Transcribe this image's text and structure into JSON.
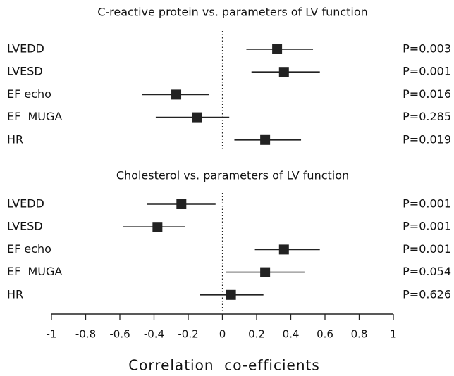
{
  "chart_data": [
    {
      "type": "forest",
      "title": "C-reactive protein vs. parameters of LV function",
      "categories": [
        "LVEDD",
        "LVESD",
        "EF echo",
        "EF  MUGA",
        "HR"
      ],
      "values": [
        0.32,
        0.36,
        -0.27,
        -0.15,
        0.25
      ],
      "ci_low": [
        0.14,
        0.17,
        -0.47,
        -0.39,
        0.07
      ],
      "ci_high": [
        0.53,
        0.57,
        -0.08,
        0.04,
        0.46
      ],
      "p_values": [
        "P=0.003",
        "P=0.001",
        "P=0.016",
        "P=0.285",
        "P=0.019"
      ],
      "xlim": [
        -1,
        1
      ],
      "color": "#222222"
    },
    {
      "type": "forest",
      "title": "Cholesterol vs. parameters of LV function",
      "categories": [
        "LVEDD",
        "LVESD",
        "EF echo",
        "EF  MUGA",
        "HR"
      ],
      "values": [
        -0.24,
        -0.38,
        0.36,
        0.25,
        0.05
      ],
      "ci_low": [
        -0.44,
        -0.58,
        0.19,
        0.02,
        -0.13
      ],
      "ci_high": [
        -0.04,
        -0.22,
        0.57,
        0.48,
        0.24
      ],
      "p_values": [
        "P=0.001",
        "P=0.001",
        "P=0.001",
        "P=0.054",
        "P=0.626"
      ],
      "xlim": [
        -1,
        1
      ],
      "color": "#222222",
      "xticks": [
        -1,
        -0.8,
        -0.6,
        -0.4,
        -0.2,
        0,
        0.2,
        0.4,
        0.6,
        0.8,
        1
      ],
      "xlabel": "Correlation  co-efficients"
    }
  ]
}
